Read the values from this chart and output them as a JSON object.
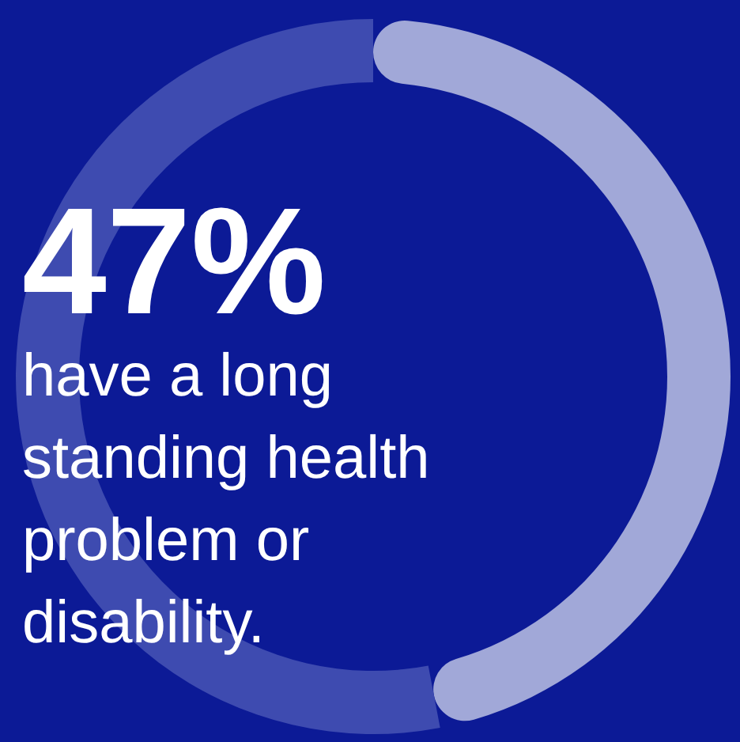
{
  "chart_data": {
    "type": "donut",
    "title": "47%",
    "subtitle": "have a long standing health problem or disability.",
    "categories": [
      null,
      null
    ],
    "values": [
      47,
      53
    ],
    "colors": [
      "#a1a8d8",
      "#3e4bb0"
    ]
  }
}
